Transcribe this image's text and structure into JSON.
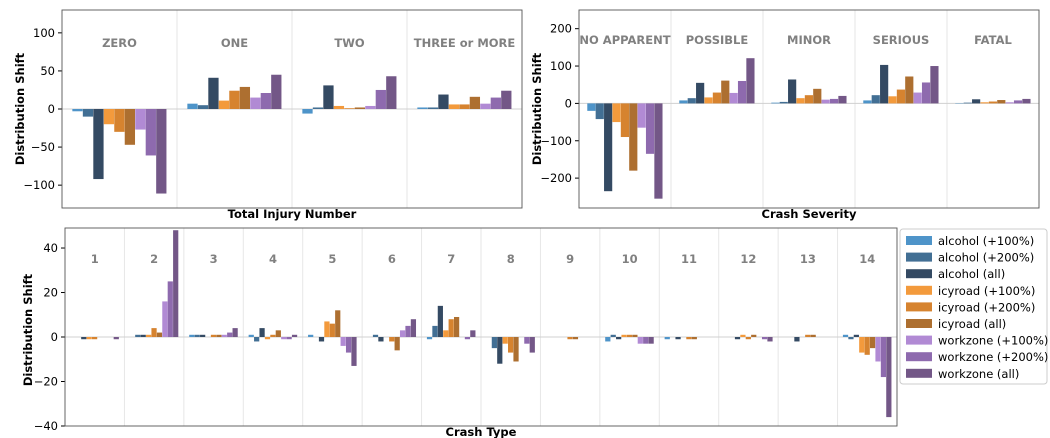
{
  "series_styles": [
    {
      "name": "alcohol (+100%)",
      "color": "#4e94c9"
    },
    {
      "name": "alcohol (+200%)",
      "color": "#426f94"
    },
    {
      "name": "alcohol (all)",
      "color": "#344a63"
    },
    {
      "name": "icyroad (+100%)",
      "color": "#f39a3c"
    },
    {
      "name": "icyroad (+200%)",
      "color": "#d6832f"
    },
    {
      "name": "icyroad (all)",
      "color": "#ad6f30"
    },
    {
      "name": "workzone (+100%)",
      "color": "#b18ad4"
    },
    {
      "name": "workzone (+200%)",
      "color": "#8e6aae"
    },
    {
      "name": "workzone (all)",
      "color": "#735787"
    }
  ],
  "legend": {
    "placement": "right",
    "entries": [
      "alcohol (+100%)",
      "alcohol (+200%)",
      "alcohol (all)",
      "icyroad (+100%)",
      "icyroad (+200%)",
      "icyroad (all)",
      "workzone (+100%)",
      "workzone (+200%)",
      "workzone (all)"
    ]
  },
  "chart_data": [
    {
      "type": "bar",
      "xlabel": "Total Injury Number",
      "ylabel": "Distribution Shift",
      "ylim": [
        -130,
        130
      ],
      "yticks": [
        100,
        50,
        0,
        -50,
        -100
      ],
      "ytick_labels": [
        "100",
        "50",
        "0",
        "−50",
        "−100"
      ],
      "grid": "vertical separators",
      "categories": [
        "ZERO",
        "ONE",
        "TWO",
        "THREE or MORE"
      ],
      "series": [
        {
          "name": "alcohol (+100%)",
          "values": [
            -3,
            7,
            -6,
            2
          ]
        },
        {
          "name": "alcohol (+200%)",
          "values": [
            -10,
            5,
            2,
            2
          ]
        },
        {
          "name": "alcohol (all)",
          "values": [
            -92,
            41,
            31,
            19
          ]
        },
        {
          "name": "icyroad (+100%)",
          "values": [
            -20,
            11,
            4,
            6
          ]
        },
        {
          "name": "icyroad (+200%)",
          "values": [
            -30,
            24,
            1,
            6
          ]
        },
        {
          "name": "icyroad (all)",
          "values": [
            -47,
            29,
            2,
            16
          ]
        },
        {
          "name": "workzone (+100%)",
          "values": [
            -27,
            15,
            4,
            7
          ]
        },
        {
          "name": "workzone (+200%)",
          "values": [
            -61,
            21,
            25,
            15
          ]
        },
        {
          "name": "workzone (all)",
          "values": [
            -111,
            45,
            43,
            24
          ]
        }
      ]
    },
    {
      "type": "bar",
      "xlabel": "Crash Severity",
      "ylabel": "Distribution Shift",
      "ylim": [
        -280,
        250
      ],
      "yticks": [
        200,
        100,
        0,
        -100,
        -200
      ],
      "ytick_labels": [
        "200",
        "100",
        "0",
        "−100",
        "−200"
      ],
      "grid": "vertical separators",
      "categories": [
        "NO APPARENT",
        "POSSIBLE",
        "MINOR",
        "SERIOUS",
        "FATAL"
      ],
      "series": [
        {
          "name": "alcohol (+100%)",
          "values": [
            -20,
            8,
            2,
            8,
            1
          ]
        },
        {
          "name": "alcohol (+200%)",
          "values": [
            -42,
            14,
            4,
            22,
            2
          ]
        },
        {
          "name": "alcohol (all)",
          "values": [
            -235,
            55,
            64,
            103,
            11
          ]
        },
        {
          "name": "icyroad (+100%)",
          "values": [
            -50,
            16,
            14,
            19,
            3
          ]
        },
        {
          "name": "icyroad (+200%)",
          "values": [
            -90,
            29,
            22,
            37,
            5
          ]
        },
        {
          "name": "icyroad (all)",
          "values": [
            -180,
            61,
            39,
            72,
            9
          ]
        },
        {
          "name": "workzone (+100%)",
          "values": [
            -65,
            28,
            10,
            29,
            3
          ]
        },
        {
          "name": "workzone (+200%)",
          "values": [
            -135,
            60,
            12,
            56,
            8
          ]
        },
        {
          "name": "workzone (all)",
          "values": [
            -255,
            121,
            20,
            100,
            12
          ]
        }
      ]
    },
    {
      "type": "bar",
      "xlabel": "Crash Type",
      "ylabel": "Distribution Shift",
      "ylim": [
        -40,
        49
      ],
      "yticks": [
        40,
        20,
        0,
        -20,
        -40
      ],
      "ytick_labels": [
        "40",
        "20",
        "0",
        "−20",
        "−40"
      ],
      "grid": "vertical separators",
      "categories": [
        "1",
        "2",
        "3",
        "4",
        "5",
        "6",
        "7",
        "8",
        "9",
        "10",
        "11",
        "12",
        "13",
        "14"
      ],
      "series": [
        {
          "name": "alcohol (+100%)",
          "values": [
            0,
            0,
            1,
            1,
            1,
            0,
            -1,
            0,
            0,
            -2,
            -1,
            0,
            0,
            1
          ]
        },
        {
          "name": "alcohol (+200%)",
          "values": [
            0,
            1,
            1,
            -2,
            0,
            1,
            5,
            -5,
            0,
            1,
            0,
            0,
            0,
            -1
          ]
        },
        {
          "name": "alcohol (all)",
          "values": [
            -1,
            1,
            1,
            4,
            -2,
            -2,
            14,
            -12,
            0,
            -1,
            -1,
            -1,
            -2,
            1
          ]
        },
        {
          "name": "icyroad (+100%)",
          "values": [
            -1,
            1,
            0,
            -1,
            7,
            0,
            3,
            -3,
            0,
            1,
            0,
            1,
            0,
            -7
          ]
        },
        {
          "name": "icyroad (+200%)",
          "values": [
            -1,
            4,
            1,
            1,
            6,
            -2,
            8,
            -7,
            -1,
            1,
            -1,
            -1,
            1,
            -8
          ]
        },
        {
          "name": "icyroad (all)",
          "values": [
            0,
            2,
            1,
            3,
            12,
            -6,
            9,
            -11,
            -1,
            1,
            -1,
            1,
            1,
            -5
          ]
        },
        {
          "name": "workzone (+100%)",
          "values": [
            0,
            16,
            1,
            -1,
            -4,
            3,
            0,
            0,
            0,
            -3,
            0,
            0,
            0,
            -11
          ]
        },
        {
          "name": "workzone (+200%)",
          "values": [
            0,
            25,
            2,
            -1,
            -7,
            5,
            -1,
            -3,
            0,
            -3,
            0,
            -1,
            0,
            -18
          ]
        },
        {
          "name": "workzone (all)",
          "values": [
            -1,
            48,
            4,
            1,
            -13,
            8,
            3,
            -7,
            0,
            -3,
            0,
            -2,
            0,
            -36
          ]
        }
      ]
    }
  ]
}
